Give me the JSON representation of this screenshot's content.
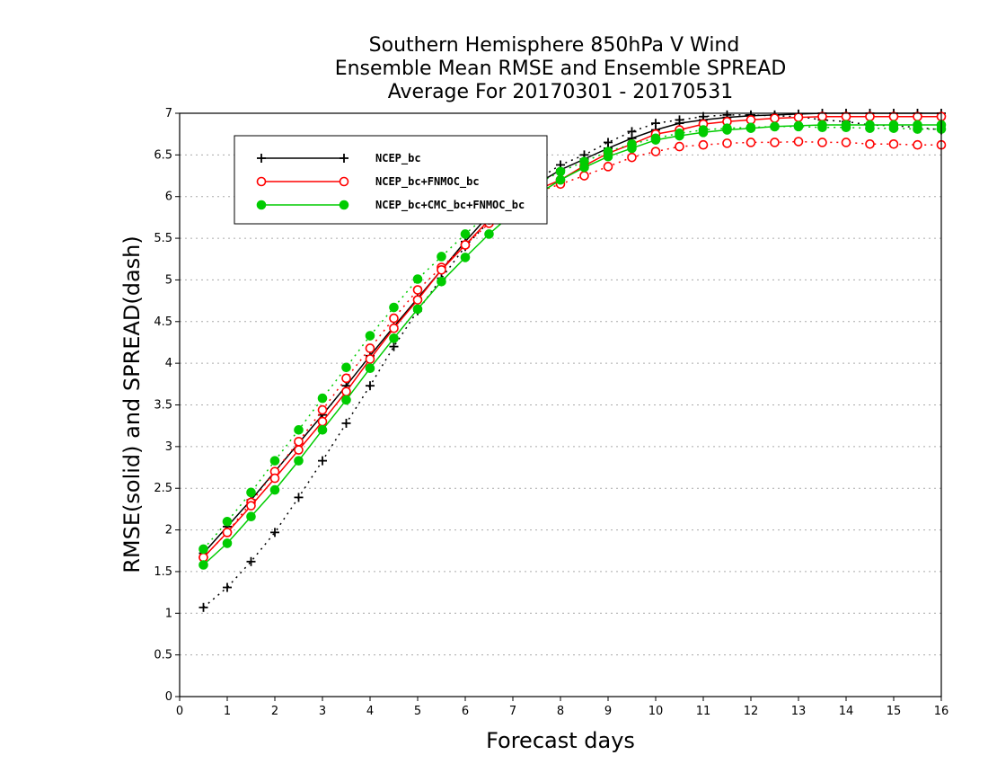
{
  "chart_data": {
    "type": "line",
    "title_lines": [
      "Southern Hemisphere 850hPa V Wind",
      "Ensemble Mean RMSE and Ensemble SPREAD",
      "Average For 20170301 - 20170531"
    ],
    "xlabel": "Forecast days",
    "ylabel": "RMSE(solid) and SPREAD(dash)",
    "xlim": [
      0,
      16
    ],
    "ylim": [
      0,
      7
    ],
    "xticks": [
      "0",
      "1",
      "2",
      "3",
      "4",
      "5",
      "6",
      "7",
      "8",
      "9",
      "10",
      "11",
      "12",
      "13",
      "14",
      "15",
      "16"
    ],
    "yticks": [
      "0",
      "0.5",
      "1",
      "1.5",
      "2",
      "2.5",
      "3",
      "3.5",
      "4",
      "4.5",
      "5",
      "5.5",
      "6",
      "6.5",
      "7"
    ],
    "grid": "horizontal dotted",
    "legend_position": "top-left",
    "x": [
      0.5,
      1,
      1.5,
      2,
      2.5,
      3,
      3.5,
      4,
      4.5,
      5,
      5.5,
      6,
      6.5,
      7,
      7.5,
      8,
      8.5,
      9,
      9.5,
      10,
      10.5,
      11,
      11.5,
      12,
      12.5,
      13,
      13.5,
      14,
      14.5,
      15,
      15.5,
      16
    ],
    "series": [
      {
        "name": "NCEP_bc",
        "color": "#000000",
        "marker": "plus",
        "rmse": [
          1.72,
          2.04,
          2.36,
          2.7,
          3.04,
          3.38,
          3.73,
          4.09,
          4.44,
          4.78,
          5.12,
          5.46,
          5.78,
          5.98,
          6.15,
          6.32,
          6.45,
          6.58,
          6.7,
          6.8,
          6.88,
          6.92,
          6.95,
          6.97,
          6.98,
          6.99,
          7.0,
          7.0,
          7.0,
          7.0,
          7.0,
          7.0
        ],
        "spread": [
          1.07,
          1.31,
          1.62,
          1.97,
          2.39,
          2.83,
          3.28,
          3.73,
          4.2,
          4.63,
          5.02,
          5.4,
          5.7,
          5.95,
          6.2,
          6.38,
          6.5,
          6.65,
          6.78,
          6.88,
          6.92,
          6.96,
          6.98,
          6.98,
          6.97,
          6.96,
          6.92,
          6.9,
          6.86,
          6.85,
          6.83,
          6.8
        ]
      },
      {
        "name": "NCEP_bc+FNMOC_bc",
        "color": "#ff0000",
        "marker": "open-circle",
        "rmse": [
          1.67,
          1.97,
          2.29,
          2.62,
          2.96,
          3.3,
          3.66,
          4.05,
          4.42,
          4.76,
          5.12,
          5.42,
          5.72,
          5.92,
          6.08,
          6.2,
          6.37,
          6.52,
          6.63,
          6.75,
          6.8,
          6.87,
          6.9,
          6.92,
          6.94,
          6.95,
          6.96,
          6.96,
          6.96,
          6.96,
          6.96,
          6.96
        ],
        "spread": [
          1.67,
          1.97,
          2.33,
          2.7,
          3.06,
          3.44,
          3.82,
          4.18,
          4.54,
          4.88,
          5.15,
          5.42,
          5.68,
          5.9,
          6.05,
          6.15,
          6.25,
          6.36,
          6.47,
          6.54,
          6.6,
          6.62,
          6.64,
          6.65,
          6.65,
          6.66,
          6.65,
          6.65,
          6.63,
          6.63,
          6.62,
          6.62
        ]
      },
      {
        "name": "NCEP_bc+CMC_bc+FNMOC_bc",
        "color": "#00cc00",
        "marker": "filled-circle",
        "rmse": [
          1.58,
          1.84,
          2.16,
          2.48,
          2.83,
          3.2,
          3.56,
          3.94,
          4.3,
          4.65,
          4.98,
          5.27,
          5.55,
          5.8,
          6.02,
          6.2,
          6.35,
          6.48,
          6.58,
          6.68,
          6.73,
          6.77,
          6.8,
          6.82,
          6.84,
          6.85,
          6.86,
          6.86,
          6.86,
          6.86,
          6.86,
          6.86
        ],
        "spread": [
          1.77,
          2.1,
          2.45,
          2.83,
          3.2,
          3.58,
          3.95,
          4.33,
          4.67,
          5.01,
          5.28,
          5.55,
          5.8,
          6.02,
          6.15,
          6.3,
          6.42,
          6.54,
          6.63,
          6.7,
          6.76,
          6.8,
          6.82,
          6.83,
          6.84,
          6.84,
          6.83,
          6.83,
          6.82,
          6.82,
          6.81,
          6.81
        ]
      }
    ]
  }
}
